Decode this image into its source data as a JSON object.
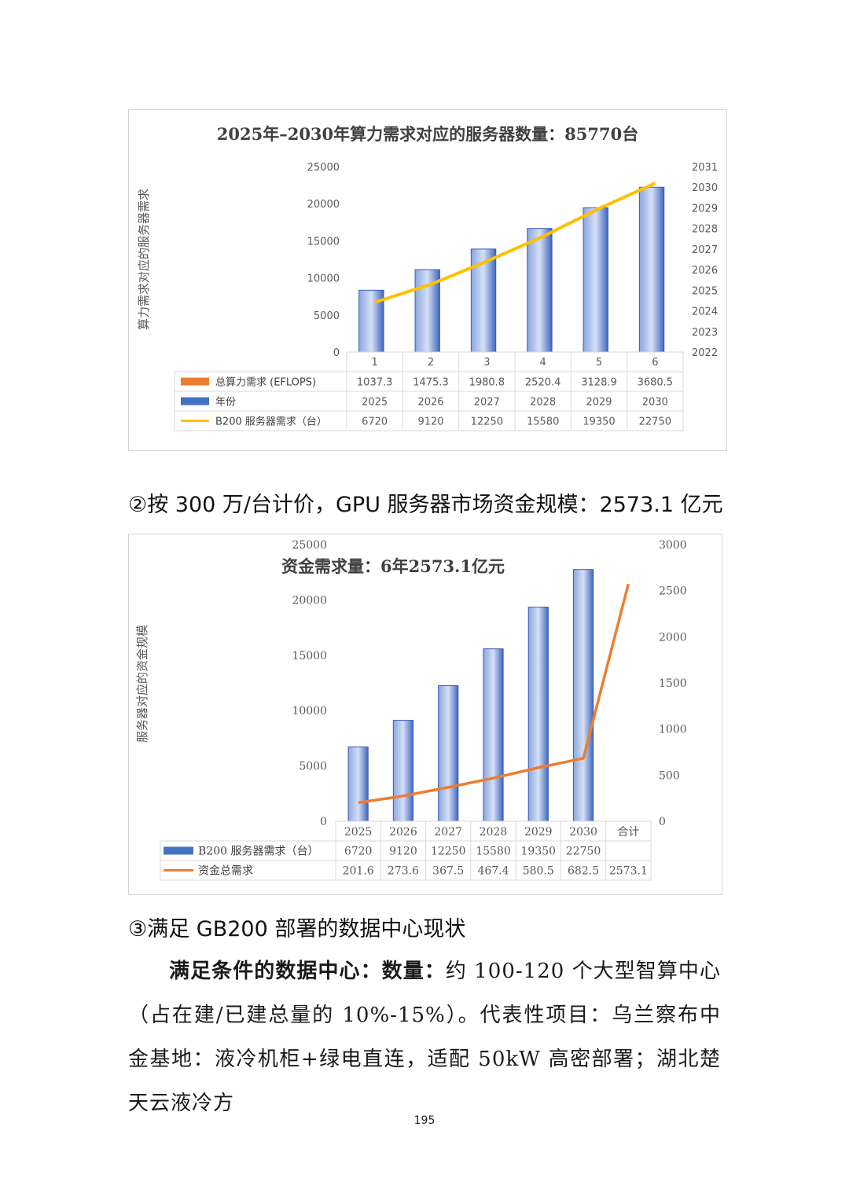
{
  "chart_data": [
    {
      "type": "bar",
      "title": "2025年–2030年算力需求对应的服务器数量：85770台",
      "ylabel": "算力需求对应的服务器需求",
      "ylim": [
        0,
        25000
      ],
      "y_ticks": [
        "25000",
        "20000",
        "15000",
        "10000",
        "5000",
        "0"
      ],
      "y2lim": [
        2022,
        2031
      ],
      "y2_ticks": [
        "2031",
        "2030",
        "2029",
        "2028",
        "2027",
        "2026",
        "2025",
        "2024",
        "2023",
        "2022"
      ],
      "categories": [
        "1",
        "2",
        "3",
        "4",
        "5",
        "6"
      ],
      "series": [
        {
          "name": "总算力需求 (EFLOPS)",
          "kind": "bar-hidden",
          "values": [
            1037.3,
            1475.3,
            1980.8,
            2520.4,
            3128.9,
            3680.5
          ],
          "color": "#ed7d31"
        },
        {
          "name": "年份",
          "kind": "bar",
          "values": [
            2025,
            2026,
            2027,
            2028,
            2029,
            2030
          ],
          "color": "#4472c4"
        },
        {
          "name": "B200 服务器需求（台）",
          "kind": "line",
          "values": [
            6720,
            9120,
            12250,
            15580,
            19350,
            22750
          ],
          "color": "#ffc000"
        }
      ],
      "table_rows": [
        [
          "1037.3",
          "1475.3",
          "1980.8",
          "2520.4",
          "3128.9",
          "3680.5"
        ],
        [
          "2025",
          "2026",
          "2027",
          "2028",
          "2029",
          "2030"
        ],
        [
          "6720",
          "9120",
          "12250",
          "15580",
          "19350",
          "22750"
        ]
      ],
      "grid": false,
      "legend": "data-table"
    },
    {
      "type": "bar",
      "title": "资金需求量：6年2573.1亿元",
      "ylabel": "服务器对应的资金规模",
      "ylim": [
        0,
        25000
      ],
      "y_ticks": [
        "25000",
        "20000",
        "15000",
        "10000",
        "5000",
        "0"
      ],
      "y2lim": [
        0,
        3000
      ],
      "y2_ticks": [
        "3000",
        "2500",
        "2000",
        "1500",
        "1000",
        "500",
        "0"
      ],
      "categories": [
        "2025",
        "2026",
        "2027",
        "2028",
        "2029",
        "2030",
        "合计"
      ],
      "series": [
        {
          "name": "B200 服务器需求（台）",
          "kind": "bar",
          "values": [
            6720,
            9120,
            12250,
            15580,
            19350,
            22750,
            null
          ],
          "color": "#4472c4"
        },
        {
          "name": "资金总需求",
          "kind": "line",
          "values": [
            201.6,
            273.6,
            367.5,
            467.4,
            580.5,
            682.5,
            2573.1
          ],
          "color": "#ed7d31"
        }
      ],
      "table_rows": [
        [
          "6720",
          "9120",
          "12250",
          "15580",
          "19350",
          "22750",
          ""
        ],
        [
          "201.6",
          "273.6",
          "367.5",
          "467.4",
          "580.5",
          "682.5",
          "2573.1"
        ]
      ],
      "grid": false,
      "legend": "data-table"
    }
  ],
  "text": {
    "heading2": "②按 300 万/台计价，GPU 服务器市场资金规模：2573.1 亿元",
    "heading3": "③满足 GB200 部署的数据中心现状",
    "para_label": "满足条件的数据中心：数量：",
    "para_body": "约 100-120 个大型智算中心（占在建/已建总量的 10%-15%）。代表性项目：乌兰察布中金基地：液冷机柜+绿电直连，适配 50kW 高密部署；湖北楚天云液冷方",
    "page_number": "195"
  }
}
